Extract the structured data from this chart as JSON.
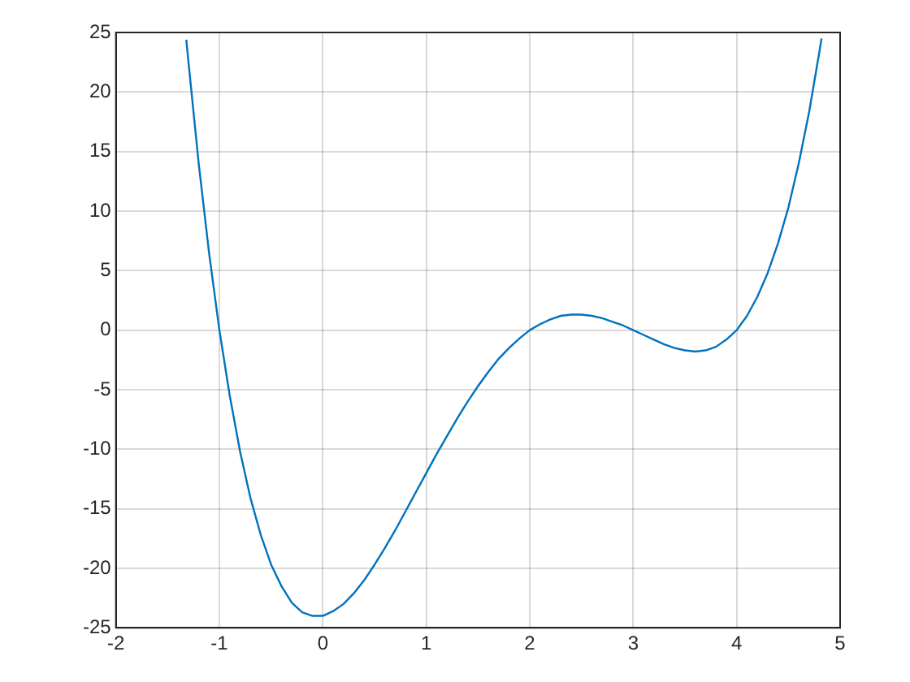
{
  "chart_data": {
    "type": "line",
    "x": [
      -1.32,
      -1.3,
      -1.2,
      -1.1,
      -1.0,
      -0.9,
      -0.8,
      -0.7,
      -0.6,
      -0.5,
      -0.4,
      -0.3,
      -0.2,
      -0.1,
      0,
      0.1,
      0.2,
      0.3,
      0.4,
      0.5,
      0.6,
      0.7,
      0.8,
      0.9,
      1.0,
      1.1,
      1.2,
      1.3,
      1.4,
      1.5,
      1.6,
      1.7,
      1.8,
      1.9,
      2.0,
      2.1,
      2.2,
      2.3,
      2.4,
      2.5,
      2.6,
      2.7,
      2.8,
      2.9,
      3.0,
      3.1,
      3.2,
      3.3,
      3.4,
      3.5,
      3.6,
      3.7,
      3.8,
      3.9,
      4.0,
      4.1,
      4.2,
      4.3,
      4.4,
      4.5,
      4.6,
      4.7,
      4.8,
      4.82
    ],
    "series": [
      {
        "color": "#0072bd",
        "values": [
          24.4,
          22.6,
          14.0,
          6.5,
          0,
          -5.5,
          -10.2,
          -14.1,
          -17.2,
          -19.7,
          -21.5,
          -22.9,
          -23.7,
          -24.0,
          -24.0,
          -23.6,
          -23.0,
          -22.1,
          -21.0,
          -19.7,
          -18.3,
          -16.8,
          -15.2,
          -13.6,
          -12.0,
          -10.4,
          -8.9,
          -7.4,
          -6.0,
          -4.7,
          -3.5,
          -2.4,
          -1.5,
          -0.7,
          0,
          0.5,
          0.9,
          1.2,
          1.3,
          1.3,
          1.2,
          1.0,
          0.7,
          0.4,
          0,
          -0.4,
          -0.8,
          -1.2,
          -1.5,
          -1.7,
          -1.8,
          -1.7,
          -1.4,
          -0.8,
          0,
          1.2,
          2.8,
          4.8,
          7.3,
          10.3,
          14.0,
          18.3,
          23.4,
          24.5
        ]
      }
    ],
    "xlim": [
      -2,
      5
    ],
    "xticks": [
      -2,
      -1,
      0,
      1,
      2,
      3,
      4,
      5
    ],
    "ylim": [
      -25,
      25
    ],
    "yticks": [
      -25,
      -20,
      -15,
      -10,
      -5,
      0,
      5,
      10,
      15,
      20,
      25
    ],
    "grid": true,
    "marker": "none",
    "line_style": "solid",
    "legend": false
  }
}
